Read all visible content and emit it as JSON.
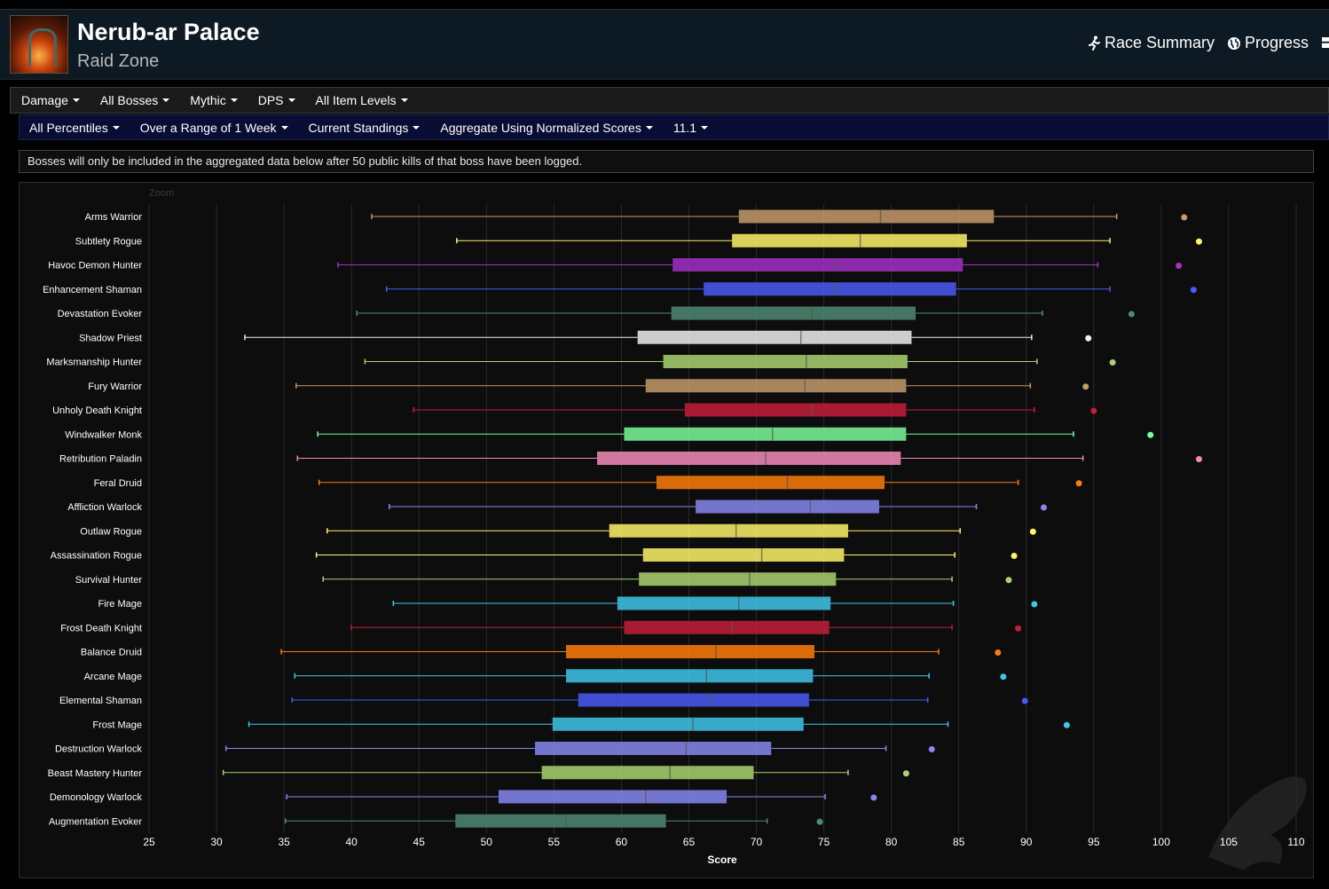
{
  "header": {
    "title": "Nerub-ar Palace",
    "subtitle": "Raid Zone",
    "race_summary_label": "Race Summary",
    "progress_label": "Progress"
  },
  "filters_primary": [
    "Damage",
    "All Bosses",
    "Mythic",
    "DPS",
    "All Item Levels"
  ],
  "filters_secondary": [
    "All Percentiles",
    "Over a Range of 1 Week",
    "Current Standings",
    "Aggregate Using Normalized Scores",
    "11.1"
  ],
  "notice": "Bosses will only be included in the aggregated data below after 50 public kills of that boss have been logged.",
  "chart_data": {
    "type": "boxplot",
    "zoom_label": "Zoom",
    "xlabel": "Score",
    "xlim": [
      25,
      110
    ],
    "xticks": [
      25,
      30,
      35,
      40,
      45,
      50,
      55,
      60,
      65,
      70,
      75,
      80,
      85,
      90,
      95,
      100,
      105,
      110
    ],
    "grid": true,
    "series": [
      {
        "name": "Arms Warrior",
        "color": "#c69b6d",
        "min": 41.5,
        "q1": 68.7,
        "median": 79.2,
        "q3": 87.6,
        "max": 96.7,
        "outlier": 101.7
      },
      {
        "name": "Subtlety Rogue",
        "color": "#fff468",
        "min": 47.8,
        "q1": 68.2,
        "median": 77.7,
        "q3": 85.6,
        "max": 96.2,
        "outlier": 102.8
      },
      {
        "name": "Havoc Demon Hunter",
        "color": "#a330c9",
        "min": 39.0,
        "q1": 63.8,
        "median": 75.8,
        "q3": 85.3,
        "max": 95.3,
        "outlier": 101.3
      },
      {
        "name": "Enhancement Shaman",
        "color": "#4a5bf5",
        "min": 42.6,
        "q1": 66.1,
        "median": 75.9,
        "q3": 84.8,
        "max": 96.2,
        "outlier": 102.4
      },
      {
        "name": "Devastation Evoker",
        "color": "#4f8a73",
        "min": 40.4,
        "q1": 63.7,
        "median": 74.1,
        "q3": 81.8,
        "max": 91.2,
        "outlier": 97.8
      },
      {
        "name": "Shadow Priest",
        "color": "#f0f0f0",
        "min": 32.1,
        "q1": 61.2,
        "median": 73.3,
        "q3": 81.5,
        "max": 90.4,
        "outlier": 94.6
      },
      {
        "name": "Marksmanship Hunter",
        "color": "#aad372",
        "min": 41.0,
        "q1": 63.1,
        "median": 73.7,
        "q3": 81.2,
        "max": 90.8,
        "outlier": 96.4
      },
      {
        "name": "Fury Warrior",
        "color": "#c69b6d",
        "min": 35.9,
        "q1": 61.8,
        "median": 73.6,
        "q3": 81.1,
        "max": 90.3,
        "outlier": 94.4
      },
      {
        "name": "Unholy Death Knight",
        "color": "#c41e3a",
        "min": 44.6,
        "q1": 64.7,
        "median": 74.1,
        "q3": 81.1,
        "max": 90.6,
        "outlier": 95.0
      },
      {
        "name": "Windwalker Monk",
        "color": "#7dfc9b",
        "min": 37.5,
        "q1": 60.2,
        "median": 71.2,
        "q3": 81.1,
        "max": 93.5,
        "outlier": 99.2
      },
      {
        "name": "Retribution Paladin",
        "color": "#f48cba",
        "min": 36.0,
        "q1": 58.2,
        "median": 70.7,
        "q3": 80.7,
        "max": 94.2,
        "outlier": 102.8
      },
      {
        "name": "Feral Druid",
        "color": "#ff7c0a",
        "min": 37.6,
        "q1": 62.6,
        "median": 72.3,
        "q3": 79.5,
        "max": 89.4,
        "outlier": 93.9
      },
      {
        "name": "Affliction Warlock",
        "color": "#8788ee",
        "min": 42.8,
        "q1": 65.5,
        "median": 74.0,
        "q3": 79.1,
        "max": 86.3,
        "outlier": 91.3
      },
      {
        "name": "Outlaw Rogue",
        "color": "#fff468",
        "min": 38.2,
        "q1": 59.1,
        "median": 68.5,
        "q3": 76.8,
        "max": 85.1,
        "outlier": 90.5
      },
      {
        "name": "Assassination Rogue",
        "color": "#fff468",
        "min": 37.4,
        "q1": 61.6,
        "median": 70.4,
        "q3": 76.5,
        "max": 84.7,
        "outlier": 89.1
      },
      {
        "name": "Survival Hunter",
        "color": "#aad372",
        "min": 37.9,
        "q1": 61.3,
        "median": 69.5,
        "q3": 75.9,
        "max": 84.5,
        "outlier": 88.7
      },
      {
        "name": "Fire Mage",
        "color": "#3fc7eb",
        "min": 43.1,
        "q1": 59.7,
        "median": 68.7,
        "q3": 75.5,
        "max": 84.6,
        "outlier": 90.6
      },
      {
        "name": "Frost Death Knight",
        "color": "#c41e3a",
        "min": 40.0,
        "q1": 60.2,
        "median": 68.2,
        "q3": 75.4,
        "max": 84.5,
        "outlier": 89.4
      },
      {
        "name": "Balance Druid",
        "color": "#ff7c0a",
        "min": 34.8,
        "q1": 55.9,
        "median": 67.0,
        "q3": 74.3,
        "max": 83.5,
        "outlier": 87.9
      },
      {
        "name": "Arcane Mage",
        "color": "#3fc7eb",
        "min": 35.8,
        "q1": 55.9,
        "median": 66.3,
        "q3": 74.2,
        "max": 82.8,
        "outlier": 88.3
      },
      {
        "name": "Elemental Shaman",
        "color": "#4a5bf5",
        "min": 35.6,
        "q1": 56.8,
        "median": 66.6,
        "q3": 73.9,
        "max": 82.7,
        "outlier": 89.9
      },
      {
        "name": "Frost Mage",
        "color": "#3fc7eb",
        "min": 32.4,
        "q1": 54.9,
        "median": 65.3,
        "q3": 73.5,
        "max": 84.2,
        "outlier": 93.0
      },
      {
        "name": "Destruction Warlock",
        "color": "#8788ee",
        "min": 30.7,
        "q1": 53.6,
        "median": 64.8,
        "q3": 71.1,
        "max": 79.6,
        "outlier": 83.0
      },
      {
        "name": "Beast Mastery Hunter",
        "color": "#aad372",
        "min": 30.5,
        "q1": 54.1,
        "median": 63.6,
        "q3": 69.8,
        "max": 76.8,
        "outlier": 81.1
      },
      {
        "name": "Demonology Warlock",
        "color": "#8788ee",
        "min": 35.2,
        "q1": 50.9,
        "median": 61.8,
        "q3": 67.8,
        "max": 75.1,
        "outlier": 78.7
      },
      {
        "name": "Augmentation Evoker",
        "color": "#4f8a73",
        "min": 35.1,
        "q1": 47.7,
        "median": 55.9,
        "q3": 63.3,
        "max": 70.8,
        "outlier": 74.7
      }
    ]
  }
}
